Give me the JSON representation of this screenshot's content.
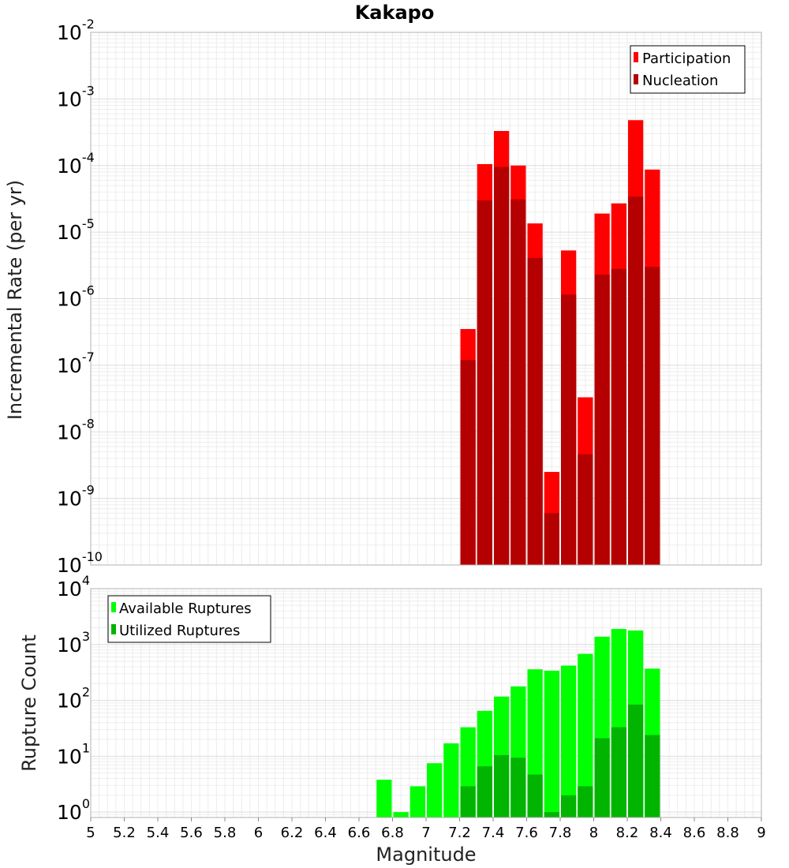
{
  "chart_data": [
    {
      "type": "bar",
      "title": "Kakapo",
      "ylabel": "Incremental Rate (per yr)",
      "xlabel": "",
      "xlim": [
        5,
        9
      ],
      "ylim": [
        1e-10,
        0.01
      ],
      "yscale": "log",
      "grid": true,
      "legend_position": "top-right",
      "y_ticks": [
        {
          "base": "10",
          "exp": "-2"
        },
        {
          "base": "10",
          "exp": "-3"
        },
        {
          "base": "10",
          "exp": "-4"
        },
        {
          "base": "10",
          "exp": "-5"
        },
        {
          "base": "10",
          "exp": "-6"
        },
        {
          "base": "10",
          "exp": "-7"
        },
        {
          "base": "10",
          "exp": "-8"
        },
        {
          "base": "10",
          "exp": "-9"
        },
        {
          "base": "10",
          "exp": "-10"
        }
      ],
      "bar_width": 0.1,
      "x": [
        7.25,
        7.35,
        7.45,
        7.55,
        7.65,
        7.75,
        7.85,
        7.95,
        8.05,
        8.15,
        8.25,
        8.35
      ],
      "series": [
        {
          "name": "Participation",
          "color": "#ff0000",
          "values": [
            3.5e-07,
            0.000105,
            0.00033,
            0.0001,
            1.35e-05,
            2.5e-09,
            5.3e-06,
            3.3e-08,
            1.9e-05,
            2.7e-05,
            0.00048,
            8.7e-05
          ]
        },
        {
          "name": "Nucleation",
          "color": "#b40000",
          "values": [
            1.2e-07,
            3e-05,
            9.5e-05,
            3.1e-05,
            4.1e-06,
            6e-10,
            1.15e-06,
            4.6e-09,
            2.3e-06,
            2.8e-06,
            3.4e-05,
            3e-06
          ]
        }
      ]
    },
    {
      "type": "bar",
      "title": "",
      "ylabel": "Rupture Count",
      "xlabel": "Magnitude",
      "xlim": [
        5,
        9
      ],
      "ylim": [
        0.8,
        10000
      ],
      "yscale": "log",
      "grid": true,
      "legend_position": "top-left",
      "x_ticks": [
        "5",
        "5.2",
        "5.4",
        "5.6",
        "5.8",
        "6",
        "6.2",
        "6.4",
        "6.6",
        "6.8",
        "7",
        "7.2",
        "7.4",
        "7.6",
        "7.8",
        "8",
        "8.2",
        "8.4",
        "8.6",
        "8.8",
        "9"
      ],
      "y_ticks": [
        {
          "base": "10",
          "exp": "4"
        },
        {
          "base": "10",
          "exp": "3"
        },
        {
          "base": "10",
          "exp": "2"
        },
        {
          "base": "10",
          "exp": "1"
        },
        {
          "base": "10",
          "exp": "0"
        }
      ],
      "bar_width": 0.1,
      "x": [
        6.75,
        6.85,
        6.95,
        7.05,
        7.15,
        7.25,
        7.35,
        7.45,
        7.55,
        7.65,
        7.75,
        7.85,
        7.95,
        8.05,
        8.15,
        8.25,
        8.35
      ],
      "series": [
        {
          "name": "Available Ruptures",
          "color": "#00ff00",
          "values": [
            3.8,
            1.0,
            2.9,
            7.5,
            17,
            33,
            65,
            117,
            178,
            360,
            340,
            420,
            680,
            1380,
            1900,
            1780,
            370
          ]
        },
        {
          "name": "Utilized Ruptures",
          "color": "#00b400",
          "values": [
            0,
            0,
            0,
            0,
            0,
            2.9,
            6.6,
            10.5,
            9.4,
            4.7,
            1.0,
            2.0,
            2.9,
            21,
            33,
            84,
            24
          ]
        }
      ]
    }
  ]
}
